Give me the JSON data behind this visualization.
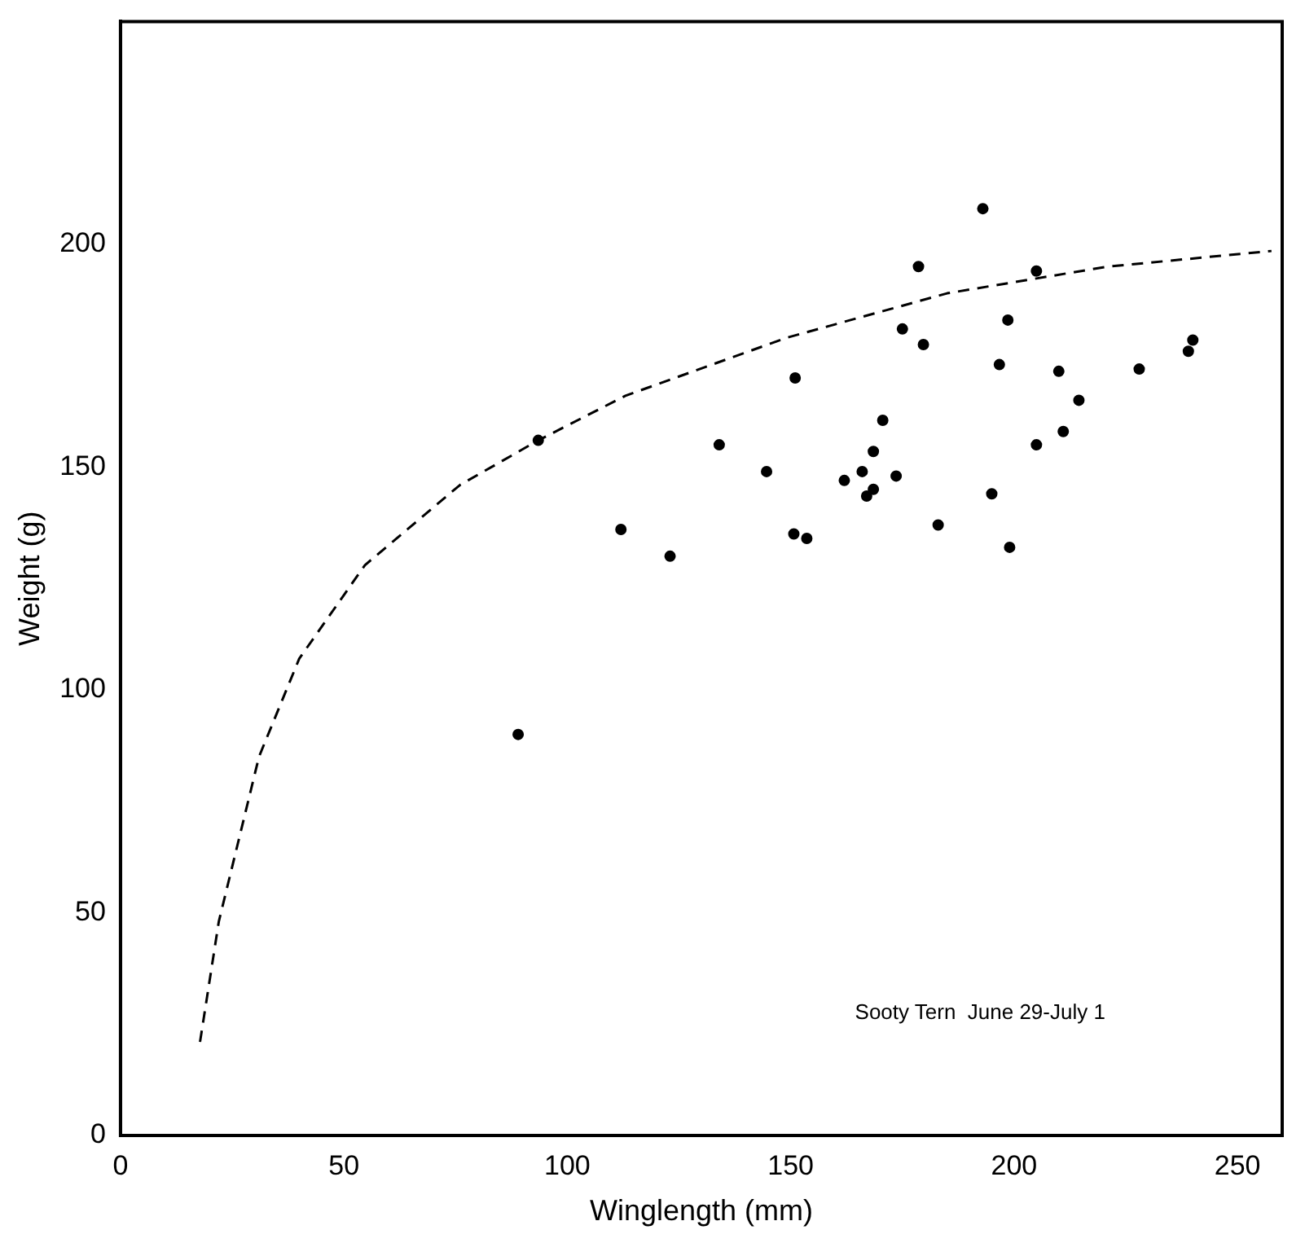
{
  "chart_data": {
    "type": "scatter",
    "xlabel": "Winglength (mm)",
    "ylabel": "Weight (g)",
    "annotations": [
      "Sooty Tern  June 29-July 1"
    ],
    "xlim": [
      0,
      260
    ],
    "ylim": [
      0,
      250
    ],
    "xticks": [
      0,
      50,
      100,
      150,
      200,
      250
    ],
    "yticks": [
      0,
      50,
      100,
      150,
      200
    ],
    "grid": false,
    "legend": false,
    "marker": "circle",
    "series": [
      {
        "type": "scatter",
        "color": "#000000",
        "x": [
          89,
          93.5,
          112,
          123,
          134,
          144.6,
          151,
          150.7,
          153.6,
          162,
          166,
          167,
          168.5,
          168.5,
          170.6,
          173.6,
          175,
          178.6,
          179.7,
          183,
          193,
          195,
          196.7,
          198.6,
          199,
          205,
          205,
          210,
          211,
          214.5,
          228,
          239,
          240
        ],
        "values": [
          90,
          156,
          136,
          130,
          155,
          149,
          170,
          135,
          134,
          147,
          149,
          143.5,
          145,
          153.5,
          160.5,
          148,
          181,
          195,
          177.5,
          137,
          208,
          144,
          173,
          183,
          132,
          194,
          155,
          171.5,
          158,
          165,
          172,
          176,
          178.5
        ]
      },
      {
        "type": "line",
        "color": "#000000",
        "line_style": "dashed",
        "marker": "none",
        "x": [
          17.8,
          22,
          31,
          40,
          54.7,
          76,
          93.5,
          113,
          149,
          185,
          221,
          257.6
        ],
        "values": [
          21,
          48,
          85,
          107,
          128,
          146,
          156,
          166,
          179,
          189,
          195,
          198.5
        ]
      }
    ]
  }
}
